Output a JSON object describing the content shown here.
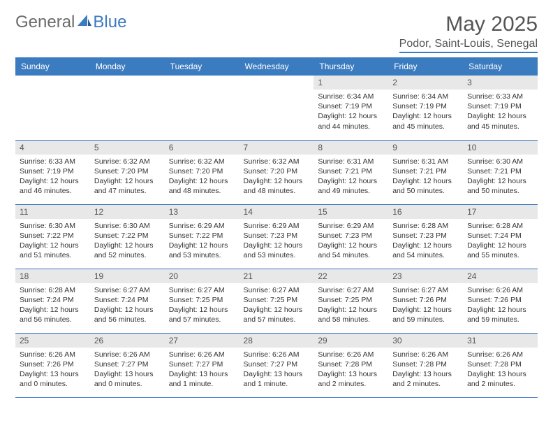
{
  "brand": {
    "part1": "General",
    "part2": "Blue"
  },
  "title": "May 2025",
  "location": "Podor, Saint-Louis, Senegal",
  "headers": [
    "Sunday",
    "Monday",
    "Tuesday",
    "Wednesday",
    "Thursday",
    "Friday",
    "Saturday"
  ],
  "colors": {
    "accent": "#3b7bbf",
    "header_text": "#ffffff",
    "daynum_bg": "#e8e8e8",
    "body_text": "#333333",
    "muted_text": "#555555",
    "background": "#ffffff"
  },
  "first_weekday": 4,
  "num_days": 31,
  "days": [
    {
      "n": 1,
      "sunrise": "6:34 AM",
      "sunset": "7:19 PM",
      "daylight": "12 hours and 44 minutes."
    },
    {
      "n": 2,
      "sunrise": "6:34 AM",
      "sunset": "7:19 PM",
      "daylight": "12 hours and 45 minutes."
    },
    {
      "n": 3,
      "sunrise": "6:33 AM",
      "sunset": "7:19 PM",
      "daylight": "12 hours and 45 minutes."
    },
    {
      "n": 4,
      "sunrise": "6:33 AM",
      "sunset": "7:19 PM",
      "daylight": "12 hours and 46 minutes."
    },
    {
      "n": 5,
      "sunrise": "6:32 AM",
      "sunset": "7:20 PM",
      "daylight": "12 hours and 47 minutes."
    },
    {
      "n": 6,
      "sunrise": "6:32 AM",
      "sunset": "7:20 PM",
      "daylight": "12 hours and 48 minutes."
    },
    {
      "n": 7,
      "sunrise": "6:32 AM",
      "sunset": "7:20 PM",
      "daylight": "12 hours and 48 minutes."
    },
    {
      "n": 8,
      "sunrise": "6:31 AM",
      "sunset": "7:21 PM",
      "daylight": "12 hours and 49 minutes."
    },
    {
      "n": 9,
      "sunrise": "6:31 AM",
      "sunset": "7:21 PM",
      "daylight": "12 hours and 50 minutes."
    },
    {
      "n": 10,
      "sunrise": "6:30 AM",
      "sunset": "7:21 PM",
      "daylight": "12 hours and 50 minutes."
    },
    {
      "n": 11,
      "sunrise": "6:30 AM",
      "sunset": "7:22 PM",
      "daylight": "12 hours and 51 minutes."
    },
    {
      "n": 12,
      "sunrise": "6:30 AM",
      "sunset": "7:22 PM",
      "daylight": "12 hours and 52 minutes."
    },
    {
      "n": 13,
      "sunrise": "6:29 AM",
      "sunset": "7:22 PM",
      "daylight": "12 hours and 53 minutes."
    },
    {
      "n": 14,
      "sunrise": "6:29 AM",
      "sunset": "7:23 PM",
      "daylight": "12 hours and 53 minutes."
    },
    {
      "n": 15,
      "sunrise": "6:29 AM",
      "sunset": "7:23 PM",
      "daylight": "12 hours and 54 minutes."
    },
    {
      "n": 16,
      "sunrise": "6:28 AM",
      "sunset": "7:23 PM",
      "daylight": "12 hours and 54 minutes."
    },
    {
      "n": 17,
      "sunrise": "6:28 AM",
      "sunset": "7:24 PM",
      "daylight": "12 hours and 55 minutes."
    },
    {
      "n": 18,
      "sunrise": "6:28 AM",
      "sunset": "7:24 PM",
      "daylight": "12 hours and 56 minutes."
    },
    {
      "n": 19,
      "sunrise": "6:27 AM",
      "sunset": "7:24 PM",
      "daylight": "12 hours and 56 minutes."
    },
    {
      "n": 20,
      "sunrise": "6:27 AM",
      "sunset": "7:25 PM",
      "daylight": "12 hours and 57 minutes."
    },
    {
      "n": 21,
      "sunrise": "6:27 AM",
      "sunset": "7:25 PM",
      "daylight": "12 hours and 57 minutes."
    },
    {
      "n": 22,
      "sunrise": "6:27 AM",
      "sunset": "7:25 PM",
      "daylight": "12 hours and 58 minutes."
    },
    {
      "n": 23,
      "sunrise": "6:27 AM",
      "sunset": "7:26 PM",
      "daylight": "12 hours and 59 minutes."
    },
    {
      "n": 24,
      "sunrise": "6:26 AM",
      "sunset": "7:26 PM",
      "daylight": "12 hours and 59 minutes."
    },
    {
      "n": 25,
      "sunrise": "6:26 AM",
      "sunset": "7:26 PM",
      "daylight": "13 hours and 0 minutes."
    },
    {
      "n": 26,
      "sunrise": "6:26 AM",
      "sunset": "7:27 PM",
      "daylight": "13 hours and 0 minutes."
    },
    {
      "n": 27,
      "sunrise": "6:26 AM",
      "sunset": "7:27 PM",
      "daylight": "13 hours and 1 minute."
    },
    {
      "n": 28,
      "sunrise": "6:26 AM",
      "sunset": "7:27 PM",
      "daylight": "13 hours and 1 minute."
    },
    {
      "n": 29,
      "sunrise": "6:26 AM",
      "sunset": "7:28 PM",
      "daylight": "13 hours and 2 minutes."
    },
    {
      "n": 30,
      "sunrise": "6:26 AM",
      "sunset": "7:28 PM",
      "daylight": "13 hours and 2 minutes."
    },
    {
      "n": 31,
      "sunrise": "6:26 AM",
      "sunset": "7:28 PM",
      "daylight": "13 hours and 2 minutes."
    }
  ],
  "labels": {
    "sunrise": "Sunrise:",
    "sunset": "Sunset:",
    "daylight": "Daylight:"
  }
}
